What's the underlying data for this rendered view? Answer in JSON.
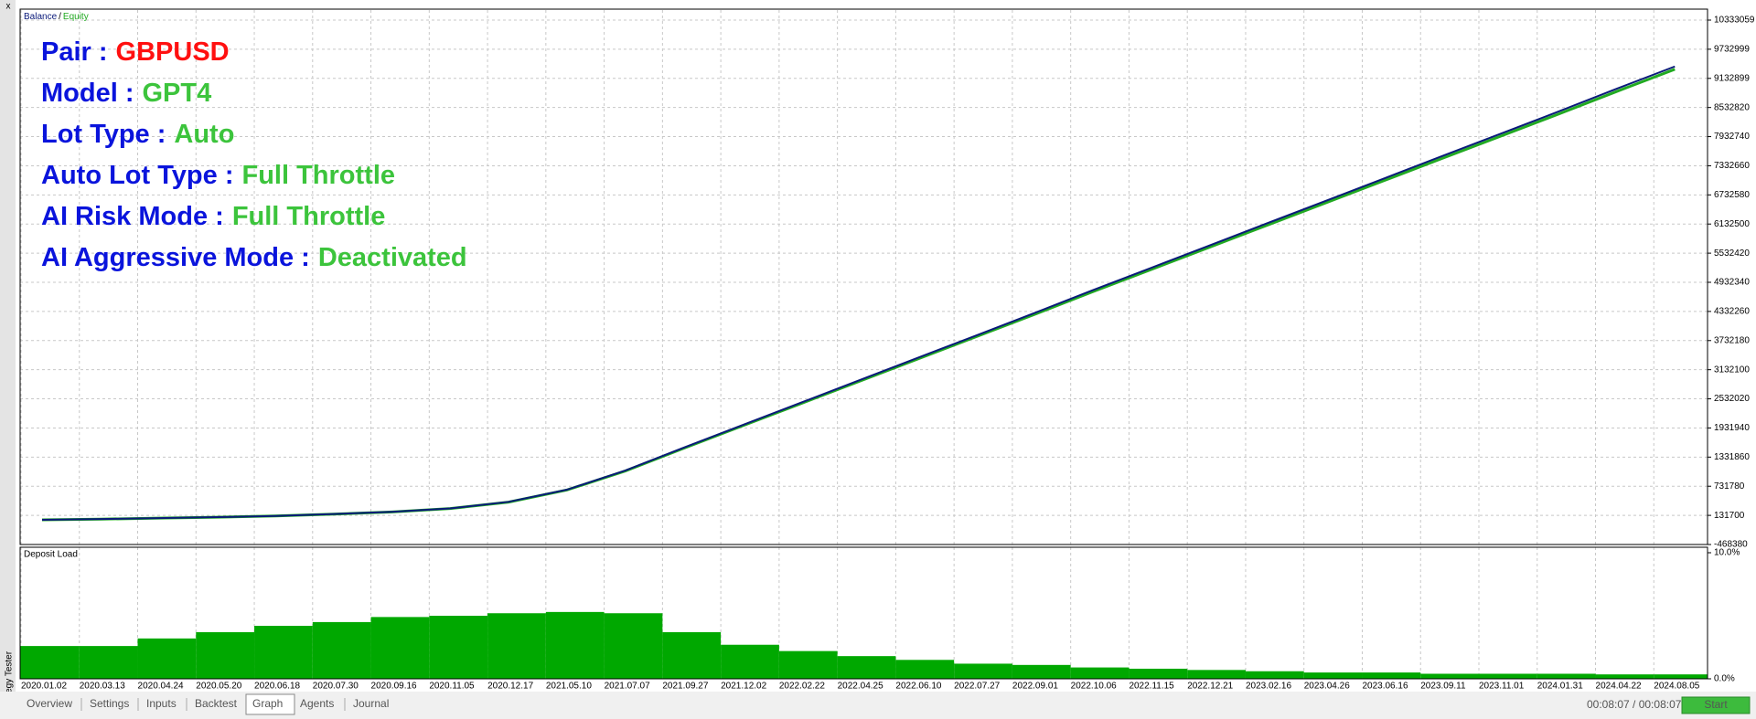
{
  "window": {
    "sidebar_title": "Strategy Tester",
    "close": "x",
    "tabs": [
      "Overview",
      "Settings",
      "Inputs",
      "Backtest",
      "Graph",
      "Agents",
      "Journal"
    ],
    "active_tab": 4,
    "elapsed": "00:08:07 / 00:08:07",
    "start_button": "Start"
  },
  "annotations": [
    {
      "label": "Pair :",
      "value": "GBPUSD",
      "label_color": "#0a14dc",
      "value_color": "#ff1010"
    },
    {
      "label": "Model :",
      "value": "GPT4",
      "label_color": "#0a14dc",
      "value_color": "#3cc43c"
    },
    {
      "label": "Lot Type :",
      "value": "Auto",
      "label_color": "#0a14dc",
      "value_color": "#3cc43c"
    },
    {
      "label": "Auto Lot Type :",
      "value": "Full Throttle",
      "label_color": "#0a14dc",
      "value_color": "#3cc43c"
    },
    {
      "label": "AI Risk Mode :",
      "value": "Full Throttle",
      "label_color": "#0a14dc",
      "value_color": "#3cc43c"
    },
    {
      "label": "AI Aggressive Mode :",
      "value": "Deactivated",
      "label_color": "#0a14dc",
      "value_color": "#3cc43c"
    }
  ],
  "chart_data": [
    {
      "type": "line",
      "legend_separator": "/",
      "grid": true,
      "categories": [
        "2020.01.02",
        "2020.03.13",
        "2020.04.24",
        "2020.05.20",
        "2020.06.18",
        "2020.07.30",
        "2020.09.16",
        "2020.11.05",
        "2020.12.17",
        "2021.05.10",
        "2021.07.07",
        "2021.09.27",
        "2021.12.02",
        "2022.02.22",
        "2022.04.25",
        "2022.06.10",
        "2022.07.27",
        "2022.09.01",
        "2022.10.06",
        "2022.11.15",
        "2022.12.21",
        "2023.02.16",
        "2023.04.26",
        "2023.06.16",
        "2023.09.11",
        "2023.11.01",
        "2024.01.31",
        "2024.04.22",
        "2024.08.05"
      ],
      "series": [
        {
          "name": "Balance",
          "color": "#0a1a7a",
          "values": [
            40000,
            55000,
            75000,
            95000,
            120000,
            160000,
            205000,
            275000,
            410000,
            660000,
            1055000,
            1525000,
            1987000,
            2447000,
            2908000,
            3370000,
            3829000,
            4291000,
            4762000,
            5221000,
            5682000,
            6144000,
            6603000,
            7065000,
            7527000,
            7986000,
            8447000,
            8918000,
            9378000
          ]
        },
        {
          "name": "Equity",
          "color": "#22aa22",
          "values": [
            39000,
            54000,
            74000,
            94000,
            119000,
            158000,
            203000,
            272000,
            405000,
            654000,
            1045000,
            1512000,
            1972000,
            2428000,
            2887000,
            3346000,
            3803000,
            4262000,
            4730000,
            5187000,
            5646000,
            6105000,
            6562000,
            7021000,
            7480000,
            7936000,
            8395000,
            8862000,
            9320000
          ]
        }
      ],
      "ylim": [
        -468380,
        10540000
      ],
      "yticks": [
        10333059,
        9732999,
        9132899,
        8532820,
        7932740,
        7332660,
        6732580,
        6132500,
        5532420,
        4932340,
        4332260,
        3732180,
        3132100,
        2532020,
        1931940,
        1331860,
        731780,
        131700,
        -468380
      ]
    },
    {
      "type": "bar",
      "title": "Deposit Load",
      "color": "#00a800",
      "grid": true,
      "values": [
        2.6,
        2.6,
        3.2,
        3.7,
        4.2,
        4.5,
        4.9,
        5.0,
        5.2,
        5.3,
        5.2,
        3.7,
        2.7,
        2.2,
        1.8,
        1.5,
        1.2,
        1.1,
        0.9,
        0.8,
        0.7,
        0.6,
        0.5,
        0.5,
        0.4,
        0.4,
        0.4,
        0.35,
        0.35
      ],
      "ylim": [
        0,
        10
      ],
      "yticks": [
        {
          "value": 10,
          "label": "10.0%"
        },
        {
          "value": 0,
          "label": "0.0%"
        }
      ]
    }
  ]
}
